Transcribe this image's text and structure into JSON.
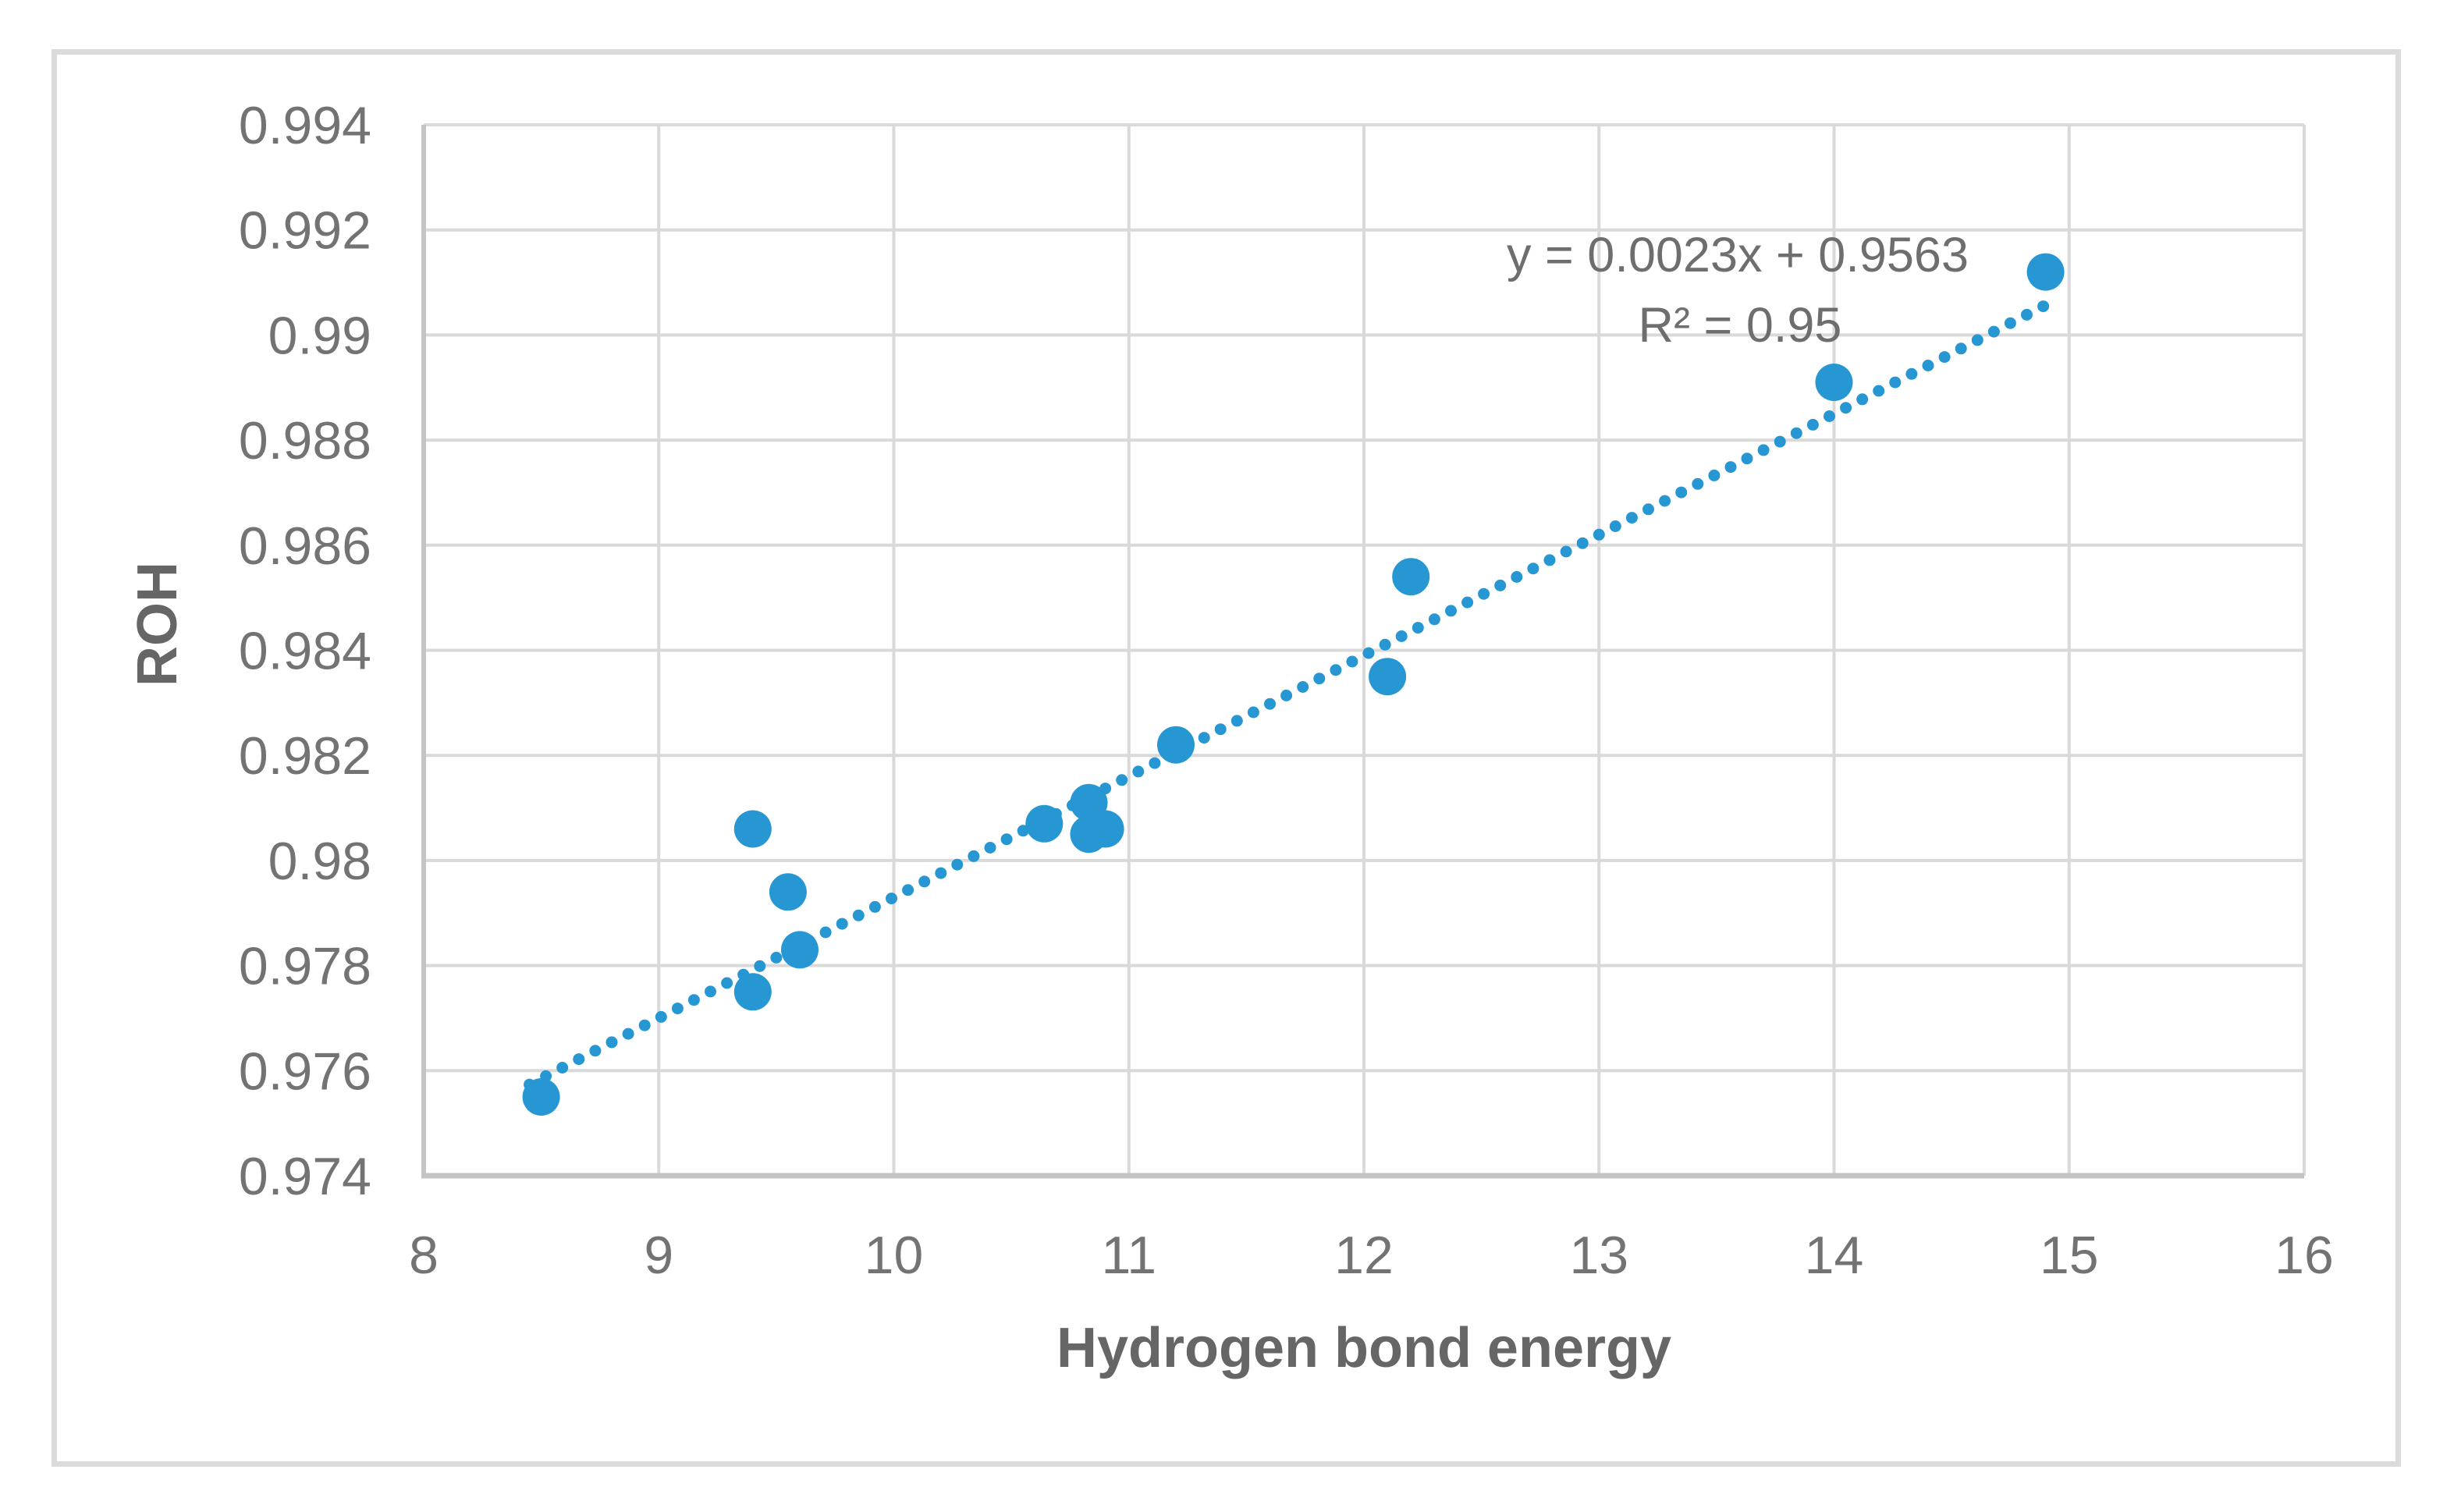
{
  "chart_data": {
    "type": "scatter",
    "title": "",
    "xlabel": "Hydrogen bond energy",
    "ylabel": "ROH",
    "xlim": [
      8,
      16
    ],
    "ylim": [
      0.974,
      0.994
    ],
    "x_ticks": [
      "8",
      "9",
      "10",
      "11",
      "12",
      "13",
      "14",
      "15",
      "16"
    ],
    "y_ticks": [
      "0.994",
      "0.992",
      "0.99",
      "0.988",
      "0.986",
      "0.984",
      "0.982",
      "0.98",
      "0.978",
      "0.976",
      "0.974"
    ],
    "grid": true,
    "legend": false,
    "points": [
      {
        "x": 8.5,
        "y": 0.9755
      },
      {
        "x": 9.4,
        "y": 0.9775
      },
      {
        "x": 9.4,
        "y": 0.9806
      },
      {
        "x": 9.55,
        "y": 0.9794
      },
      {
        "x": 9.6,
        "y": 0.9783
      },
      {
        "x": 10.64,
        "y": 0.9807
      },
      {
        "x": 10.83,
        "y": 0.9805
      },
      {
        "x": 10.83,
        "y": 0.9811
      },
      {
        "x": 10.9,
        "y": 0.9806
      },
      {
        "x": 11.2,
        "y": 0.9822
      },
      {
        "x": 12.1,
        "y": 0.9835
      },
      {
        "x": 12.2,
        "y": 0.9854
      },
      {
        "x": 14.0,
        "y": 0.9891
      },
      {
        "x": 14.9,
        "y": 0.9912
      }
    ],
    "trendline": {
      "slope": 0.0023,
      "intercept": 0.9563,
      "r_squared": 0.95,
      "x_start": 8.45,
      "x_end": 14.95,
      "style": "dotted",
      "equation_label": "y = 0.0023x + 0.9563",
      "r2_label": "R² = 0.95"
    },
    "colors": {
      "marker": "#2797D3",
      "trendline": "#2797D3",
      "gridline": "#D9D9D9",
      "axis_line": "#C4C4C4",
      "tick_text": "#737373",
      "title_text": "#666666",
      "annotation_text": "#6E6E6E",
      "frame_border": "#DBDBDB",
      "background": "#FFFFFF"
    }
  }
}
